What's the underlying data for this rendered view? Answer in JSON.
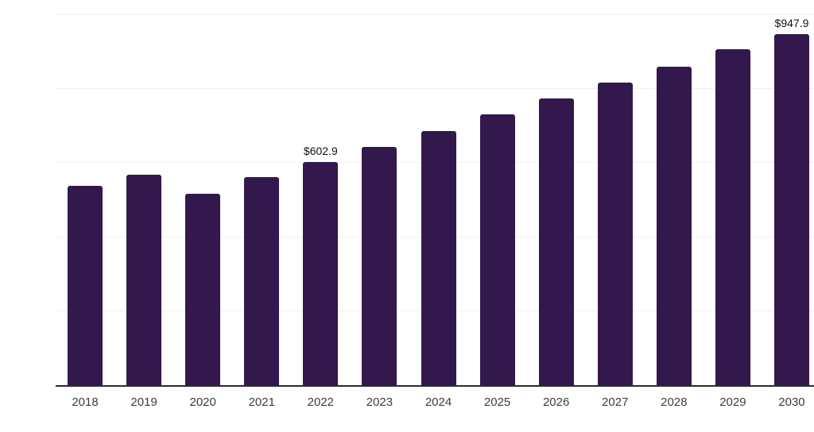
{
  "chart_data": {
    "type": "bar",
    "title": "",
    "xlabel": "",
    "ylabel": "",
    "categories": [
      "2018",
      "2019",
      "2020",
      "2021",
      "2022",
      "2023",
      "2024",
      "2025",
      "2026",
      "2027",
      "2028",
      "2029",
      "2030"
    ],
    "values": [
      538.0,
      568.0,
      517.0,
      562.0,
      602.9,
      643.0,
      687.0,
      731.0,
      774.0,
      817.0,
      860.0,
      907.0,
      947.9
    ],
    "data_labels": {
      "2022": "$602.9",
      "2030": "$947.9"
    },
    "ylim": [
      0,
      1000
    ],
    "gridline_values": [
      200,
      400,
      600,
      800,
      1000
    ],
    "grid": "on",
    "legend": "none",
    "colors": {
      "bar": "#33184d",
      "axis": "#2b2b2b",
      "gridline": "#efefef",
      "tick_label": "#3c3c3c",
      "data_label": "#111111",
      "background": "#ffffff"
    }
  }
}
